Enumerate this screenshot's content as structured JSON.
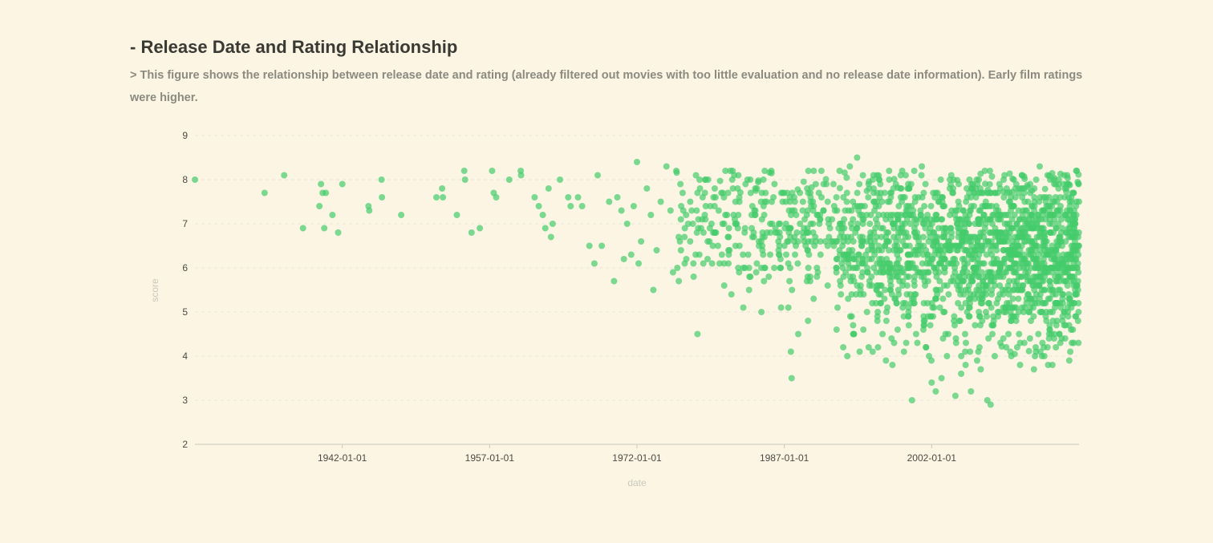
{
  "header": {
    "title": "- Release Date and Rating Relationship",
    "subtitle": "> This figure shows the relationship between release date and rating (already filtered out movies with too little evaluation and no release date information). Early film ratings were higher."
  },
  "colors": {
    "background": "#fcf5e3",
    "point": "#44cc6b",
    "title": "#3a3a35",
    "subtitle": "#8a8a80"
  },
  "chart_data": {
    "type": "scatter",
    "title": "- Release Date and Rating Relationship",
    "xlabel": "date",
    "ylabel": "score",
    "xlim": [
      "1927-01-01",
      "2017-01-01"
    ],
    "ylim": [
      2,
      9
    ],
    "y_ticks": [
      2,
      3,
      4,
      5,
      6,
      7,
      8,
      9
    ],
    "x_ticks": [
      "1942-01-01",
      "1957-01-01",
      "1972-01-01",
      "1987-01-01",
      "2002-01-01"
    ],
    "grid": true,
    "legend": "none",
    "dense_cloud_note": "",
    "points": [
      [
        "1927-01-01",
        8.0
      ],
      [
        "1934-02-01",
        7.7
      ],
      [
        "1936-02-01",
        8.1
      ],
      [
        "1938-01-01",
        6.9
      ],
      [
        "1939-09-01",
        7.4
      ],
      [
        "1939-11-01",
        7.9
      ],
      [
        "1940-01-01",
        7.7
      ],
      [
        "1940-03-01",
        6.9
      ],
      [
        "1940-05-01",
        7.7
      ],
      [
        "1941-01-01",
        7.2
      ],
      [
        "1941-08-01",
        6.8
      ],
      [
        "1942-01-01",
        7.9
      ],
      [
        "1944-09-01",
        7.4
      ],
      [
        "1944-10-01",
        7.3
      ],
      [
        "1946-01-01",
        8.0
      ],
      [
        "1946-01-15",
        7.6
      ],
      [
        "1948-01-01",
        7.2
      ],
      [
        "1951-08-01",
        7.6
      ],
      [
        "1952-04-01",
        7.6
      ],
      [
        "1952-03-01",
        7.8
      ],
      [
        "1953-09-01",
        7.2
      ],
      [
        "1954-06-01",
        8.2
      ],
      [
        "1954-07-01",
        8.0
      ],
      [
        "1955-03-01",
        6.8
      ],
      [
        "1956-01-01",
        6.9
      ],
      [
        "1957-04-01",
        8.2
      ],
      [
        "1957-06-01",
        7.7
      ],
      [
        "1957-09-01",
        7.6
      ],
      [
        "1959-01-01",
        8.0
      ],
      [
        "1960-03-01",
        8.2
      ],
      [
        "1960-03-15",
        8.1
      ],
      [
        "1961-08-01",
        7.6
      ],
      [
        "1962-01-01",
        7.4
      ],
      [
        "1962-06-01",
        7.2
      ],
      [
        "1962-09-01",
        6.9
      ],
      [
        "1963-01-01",
        7.8
      ],
      [
        "1963-04-01",
        6.7
      ],
      [
        "1963-06-01",
        7.0
      ],
      [
        "1964-03-01",
        8.0
      ],
      [
        "1965-01-01",
        7.6
      ],
      [
        "1965-04-01",
        7.4
      ],
      [
        "1966-01-01",
        7.6
      ],
      [
        "1966-06-01",
        7.4
      ],
      [
        "1967-03-01",
        6.5
      ],
      [
        "1967-09-01",
        6.1
      ],
      [
        "1968-06-01",
        6.5
      ],
      [
        "1968-01-01",
        8.1
      ],
      [
        "1969-03-01",
        7.5
      ],
      [
        "1969-09-01",
        5.7
      ],
      [
        "1970-01-01",
        7.6
      ],
      [
        "1970-06-01",
        7.3
      ],
      [
        "1970-09-01",
        6.2
      ],
      [
        "1971-01-01",
        7.0
      ],
      [
        "1971-06-01",
        6.3
      ],
      [
        "1971-09-01",
        7.4
      ],
      [
        "1972-01-01",
        8.4
      ],
      [
        "1972-03-01",
        6.1
      ],
      [
        "1972-06-01",
        6.6
      ],
      [
        "1973-01-01",
        7.8
      ],
      [
        "1973-06-01",
        7.2
      ],
      [
        "1973-09-01",
        5.5
      ],
      [
        "1974-01-01",
        6.4
      ],
      [
        "1974-06-01",
        7.5
      ],
      [
        "1975-01-01",
        8.3
      ],
      [
        "1975-06-01",
        7.3
      ],
      [
        "1975-09-01",
        5.9
      ],
      [
        "1976-01-01",
        8.2
      ],
      [
        "1976-06-01",
        7.9
      ],
      [
        "1977-01-01",
        7.2
      ],
      [
        "1977-06-01",
        6.6
      ],
      [
        "1978-01-01",
        8.1
      ],
      [
        "1978-03-01",
        4.5
      ],
      [
        "1978-06-01",
        7.8
      ],
      [
        "1979-01-01",
        7.4
      ],
      [
        "1979-06-01",
        6.9
      ],
      [
        "1980-01-01",
        7.6
      ],
      [
        "1980-06-01",
        6.1
      ],
      [
        "1981-01-01",
        8.2
      ],
      [
        "1981-06-01",
        6.4
      ],
      [
        "1982-01-01",
        7.0
      ],
      [
        "1982-06-01",
        7.6
      ],
      [
        "1983-01-01",
        6.0
      ],
      [
        "1983-06-01",
        5.5
      ],
      [
        "1984-01-01",
        7.2
      ],
      [
        "1984-06-01",
        6.5
      ],
      [
        "1984-09-01",
        5.0
      ],
      [
        "1985-01-01",
        8.2
      ],
      [
        "1985-06-01",
        5.8
      ],
      [
        "1986-01-01",
        7.9
      ],
      [
        "1986-06-01",
        6.4
      ],
      [
        "1986-09-01",
        5.1
      ],
      [
        "1987-06-01",
        5.1
      ],
      [
        "1987-09-01",
        4.1
      ],
      [
        "1987-10-01",
        3.5
      ],
      [
        "1988-06-01",
        4.5
      ],
      [
        "1988-01-01",
        7.6
      ],
      [
        "1989-01-01",
        6.9
      ],
      [
        "1989-06-01",
        4.8
      ],
      [
        "1990-01-01",
        8.2
      ],
      [
        "1990-06-01",
        5.9
      ],
      [
        "1991-01-01",
        7.3
      ],
      [
        "1991-06-01",
        6.5
      ],
      [
        "1992-01-01",
        7.9
      ],
      [
        "1992-06-01",
        5.1
      ],
      [
        "1993-01-01",
        4.2
      ],
      [
        "1993-06-01",
        4.0
      ],
      [
        "1993-09-01",
        8.3
      ],
      [
        "1994-01-01",
        4.5
      ],
      [
        "1994-06-01",
        8.5
      ],
      [
        "1994-09-01",
        4.1
      ],
      [
        "1995-01-01",
        8.1
      ],
      [
        "1995-06-01",
        5.0
      ],
      [
        "1996-01-01",
        4.1
      ],
      [
        "1996-06-01",
        7.5
      ],
      [
        "1997-01-01",
        4.5
      ],
      [
        "1997-06-01",
        6.2
      ],
      [
        "1997-09-01",
        8.2
      ],
      [
        "1998-01-01",
        3.8
      ],
      [
        "1998-06-01",
        6.6
      ],
      [
        "1999-01-01",
        8.2
      ],
      [
        "1999-06-01",
        4.3
      ],
      [
        "2000-01-01",
        3.0
      ],
      [
        "2000-06-01",
        4.5
      ],
      [
        "2001-01-01",
        8.3
      ],
      [
        "2001-06-01",
        4.2
      ],
      [
        "2002-01-01",
        3.4
      ],
      [
        "2002-06-01",
        3.2
      ],
      [
        "2003-01-01",
        3.5
      ],
      [
        "2003-06-01",
        4.5
      ],
      [
        "2004-01-01",
        8.1
      ],
      [
        "2004-06-01",
        3.1
      ],
      [
        "2005-01-01",
        3.6
      ],
      [
        "2005-06-01",
        4.1
      ],
      [
        "2006-01-01",
        3.2
      ],
      [
        "2006-06-01",
        4.7
      ],
      [
        "2007-01-01",
        3.7
      ],
      [
        "2007-06-01",
        8.2
      ],
      [
        "2007-09-01",
        3.0
      ],
      [
        "2008-01-01",
        2.9
      ],
      [
        "2008-06-01",
        4.0
      ],
      [
        "2009-01-01",
        4.3
      ],
      [
        "2009-06-01",
        8.1
      ],
      [
        "2010-01-01",
        4.1
      ],
      [
        "2010-06-01",
        5.1
      ],
      [
        "2011-01-01",
        3.8
      ],
      [
        "2011-06-01",
        7.8
      ],
      [
        "2012-01-01",
        4.4
      ],
      [
        "2012-06-01",
        3.7
      ],
      [
        "2013-01-01",
        8.3
      ],
      [
        "2013-06-01",
        4.2
      ],
      [
        "2014-01-01",
        4.6
      ],
      [
        "2014-06-01",
        8.0
      ],
      [
        "2015-01-01",
        4.5
      ],
      [
        "2015-06-01",
        7.9
      ],
      [
        "2016-01-01",
        4.7
      ],
      [
        "2016-06-01",
        7.0
      ]
    ],
    "dense_clusters": [
      {
        "x_from": "1976-01-01",
        "x_to": "1992-01-01",
        "y_center": 6.9,
        "y_spread": 0.75,
        "count": 280
      },
      {
        "x_from": "1992-01-01",
        "x_to": "2000-01-01",
        "y_center": 6.5,
        "y_spread": 0.9,
        "count": 380
      },
      {
        "x_from": "2000-01-01",
        "x_to": "2017-01-01",
        "y_center": 6.3,
        "y_spread": 0.95,
        "count": 1300
      }
    ]
  }
}
